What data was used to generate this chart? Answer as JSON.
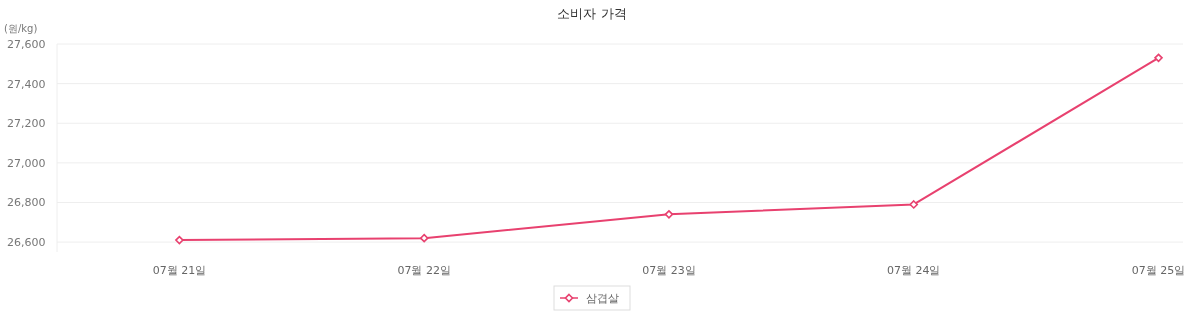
{
  "chart_data": {
    "type": "line",
    "title": "소비자 가격",
    "ylabel": "(원/kg)",
    "categories": [
      "07월 21일",
      "07월 22일",
      "07월 23일",
      "07월 24일",
      "07월 25일"
    ],
    "series": [
      {
        "name": "삼겹살",
        "color": "#e8416f",
        "values": [
          26610,
          26620,
          26740,
          26790,
          27530
        ]
      }
    ],
    "ylim": [
      26550,
      27600
    ],
    "yticks": [
      {
        "value": 26600,
        "label": "26,600"
      },
      {
        "value": 26800,
        "label": "26,800"
      },
      {
        "value": 27000,
        "label": "27,000"
      },
      {
        "value": 27200,
        "label": "27,200"
      },
      {
        "value": 27400,
        "label": "27,400"
      },
      {
        "value": 27600,
        "label": "27,600"
      }
    ],
    "grid": "y",
    "legend": "bottom",
    "marker": "diamond",
    "line_style": "solid"
  }
}
